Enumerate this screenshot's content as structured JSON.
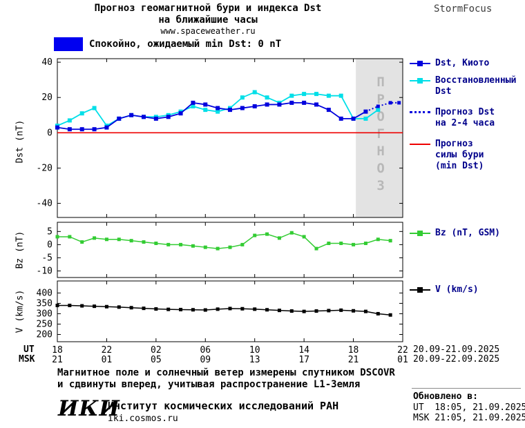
{
  "header": {
    "title_line1": "Прогноз геомагнитной бури и индекса Dst",
    "title_line2": "на ближайшие часы",
    "site": "www.spaceweather.ru",
    "app_name": "StormFocus"
  },
  "status": {
    "text": "Спокойно, ожидаемый min Dst: 0 nT"
  },
  "legend": {
    "dst_kyoto": "Dst, Киото",
    "dst_restored": "Восстановленный\nDst",
    "dst_forecast": "Прогноз Dst\nна 2-4 часа",
    "storm_forecast": "Прогноз\nсилы бури\n(min Dst)",
    "bz": "Bz (nT, GSM)",
    "v": "V (km/s)"
  },
  "colors": {
    "dst_kyoto": "#0000dd",
    "dst_restored": "#00dfe8",
    "storm_forecast": "#ee0000",
    "bz": "#33cc33",
    "v": "#000000",
    "forecast_region_bg": "#e3e3e3",
    "forecast_region_text": "#b8b8b8",
    "status_quiet": "#0000f0",
    "legend_text": "#00008b"
  },
  "chart_data": [
    {
      "type": "line",
      "name": "dst",
      "ylabel": "Dst (nT)",
      "ylim": [
        -48,
        42
      ],
      "yticks": [
        40,
        20,
        0,
        -20,
        -40
      ],
      "grid": false,
      "legend_position": "right",
      "forecast_region": {
        "x_start": 24.2,
        "x_end": 28,
        "label": "ПРОГНОЗ"
      },
      "series": [
        {
          "key": "storm_forecast",
          "name": "Прогноз силы бури (min Dst)",
          "color_key": "storm_forecast",
          "marker": false,
          "width": 1.6,
          "x": [
            0,
            28
          ],
          "values": [
            0,
            0
          ]
        },
        {
          "key": "dst_restored",
          "name": "Восстановленный Dst",
          "color_key": "dst_restored",
          "marker": true,
          "marker_size": 6,
          "width": 1.8,
          "x": [
            0,
            1,
            2,
            3,
            4,
            5,
            6,
            7,
            8,
            9,
            10,
            11,
            12,
            13,
            14,
            15,
            16,
            17,
            18,
            19,
            20,
            21,
            22,
            23,
            24,
            25,
            26
          ],
          "values": [
            4,
            7,
            11,
            14,
            4,
            8,
            10,
            9,
            9,
            10,
            12,
            15,
            13,
            12,
            14,
            20,
            23,
            20,
            17,
            21,
            22,
            22,
            21,
            21,
            8,
            8,
            13
          ]
        },
        {
          "key": "dst_kyoto",
          "name": "Dst, Киото",
          "color_key": "dst_kyoto",
          "marker": true,
          "marker_size": 6,
          "width": 1.8,
          "x": [
            0,
            1,
            2,
            3,
            4,
            5,
            6,
            7,
            8,
            9,
            10,
            11,
            12,
            13,
            14,
            15,
            16,
            17,
            18,
            19,
            20,
            21,
            22,
            23,
            24,
            25
          ],
          "values": [
            3,
            2,
            2,
            2,
            3,
            8,
            10,
            9,
            8,
            9,
            11,
            17,
            16,
            14,
            13,
            14,
            15,
            16,
            16,
            17,
            17,
            16,
            13,
            8,
            8,
            12
          ]
        },
        {
          "key": "dst_forecast",
          "name": "Прогноз Dst на 2-4 часа",
          "color_key": "dst_kyoto",
          "marker": true,
          "marker_size": 5,
          "width": 2,
          "dash": "2 3",
          "x": [
            25,
            26,
            27,
            27.7
          ],
          "values": [
            12,
            15,
            17,
            17
          ]
        }
      ]
    },
    {
      "type": "line",
      "name": "bz",
      "ylabel": "Bz (nT)",
      "ylim": [
        -12.5,
        8.5
      ],
      "yticks": [
        5,
        0,
        -5,
        -10
      ],
      "grid": false,
      "series": [
        {
          "key": "bz",
          "name": "Bz (nT, GSM)",
          "color_key": "bz",
          "marker": true,
          "marker_size": 5,
          "width": 1.5,
          "x": [
            0,
            1,
            2,
            3,
            4,
            5,
            6,
            7,
            8,
            9,
            10,
            11,
            12,
            13,
            14,
            15,
            16,
            17,
            18,
            19,
            20,
            21,
            22,
            23,
            24,
            25,
            26,
            27
          ],
          "values": [
            3,
            3,
            1,
            2.5,
            2,
            2,
            1.5,
            1,
            0.5,
            0,
            0,
            -0.5,
            -1,
            -1.5,
            -1,
            0,
            3.5,
            4,
            2.5,
            4.5,
            3,
            -1.5,
            0.5,
            0.5,
            0,
            0.5,
            2,
            1.5
          ]
        }
      ]
    },
    {
      "type": "line",
      "name": "v",
      "ylabel": "V (km/s)",
      "ylim": [
        165,
        458
      ],
      "yticks": [
        400,
        350,
        300,
        250,
        200
      ],
      "grid": false,
      "series": [
        {
          "key": "v",
          "name": "V (km/s)",
          "color_key": "v",
          "marker": true,
          "marker_size": 5,
          "width": 1.5,
          "x": [
            0,
            1,
            2,
            3,
            4,
            5,
            6,
            7,
            8,
            9,
            10,
            11,
            12,
            13,
            14,
            15,
            16,
            17,
            18,
            19,
            20,
            21,
            22,
            23,
            24,
            25,
            26,
            27
          ],
          "values": [
            340,
            340,
            338,
            336,
            334,
            332,
            329,
            326,
            323,
            321,
            320,
            319,
            318,
            322,
            325,
            324,
            322,
            319,
            316,
            313,
            311,
            313,
            315,
            317,
            314,
            311,
            300,
            294
          ]
        }
      ]
    }
  ],
  "xaxis": {
    "ut_label": "UT",
    "msk_label": "MSK",
    "hours": [
      0,
      4,
      8,
      12,
      16,
      20,
      24,
      28
    ],
    "ut_ticks": [
      "18",
      "22",
      "02",
      "06",
      "10",
      "14",
      "18",
      "22"
    ],
    "msk_ticks": [
      "21",
      "01",
      "05",
      "09",
      "13",
      "17",
      "21",
      "01"
    ],
    "ut_dates": "20.09-21.09.2025",
    "msk_dates": "20.09-22.09.2025"
  },
  "footnote": {
    "line1": "Магнитное поле и солнечный ветер измерены спутником DSCOVR",
    "line2": "и сдвинуты вперед, учитывая распространение L1-Земля"
  },
  "footer": {
    "logo": "ИКИ",
    "institute": "Институт космических исследований РАН",
    "site": "iki.cosmos.ru",
    "updated_label": "Обновлено в:",
    "updated_ut": "UT  18:05, 21.09.2025",
    "updated_msk": "MSK 21:05, 21.09.2025"
  }
}
